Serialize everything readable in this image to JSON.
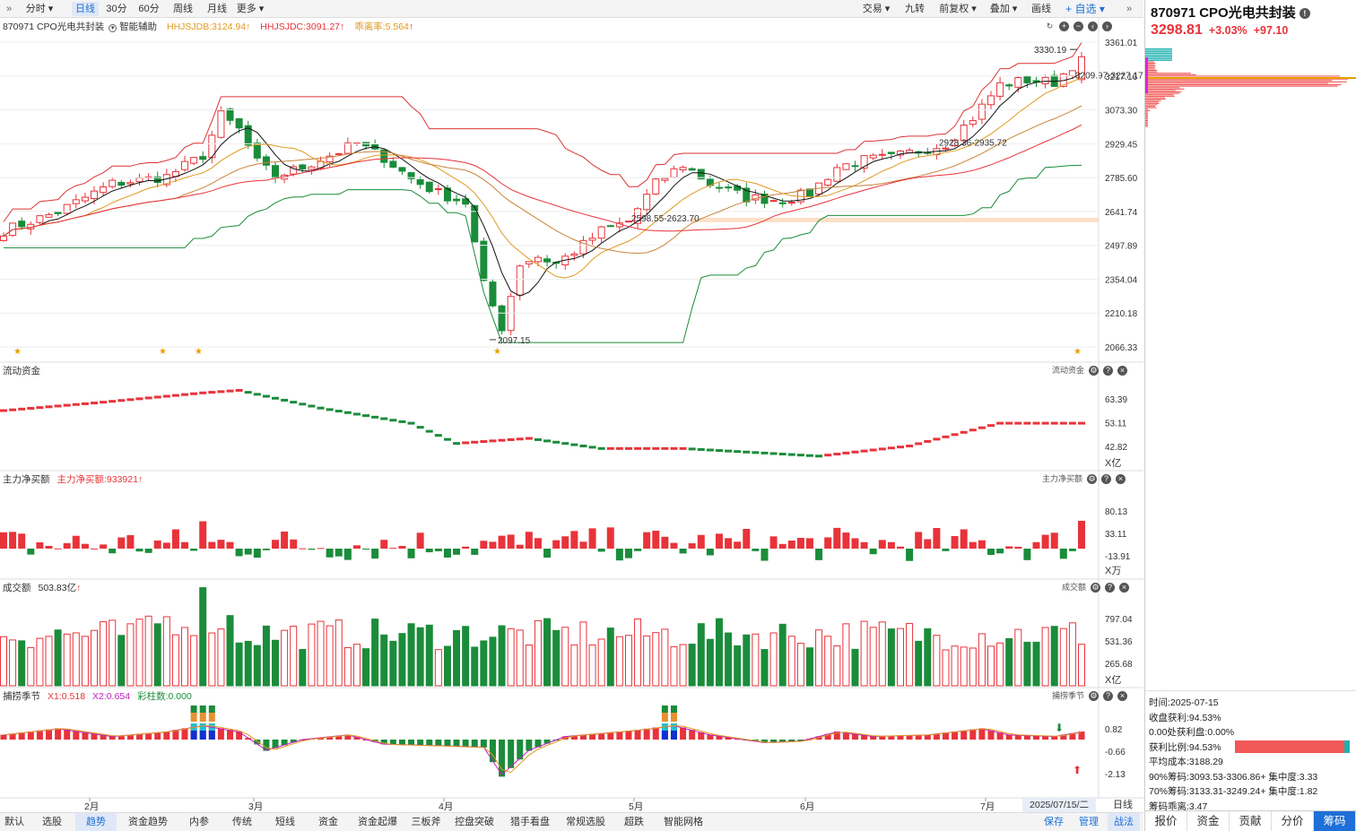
{
  "toolbar": {
    "tabs": [
      "分时",
      "日线",
      "30分",
      "60分",
      "周线",
      "月线",
      "更多"
    ],
    "active": "日线",
    "right": [
      "交易",
      "九转",
      "前复权",
      "叠加",
      "画线",
      "自选"
    ]
  },
  "chart_title": {
    "code_name": "870971 CPO光电共封装",
    "assist": "智能辅助",
    "ind1": "HHJSJDB:3124.94",
    "ind2": "HHJSJDC:3091.27",
    "ind3": "乖离率:5.564"
  },
  "price_axis": [
    "3361.01",
    "3217.16",
    "3073.30",
    "2929.45",
    "2785.60",
    "2641.74",
    "2497.89",
    "2354.04",
    "2210.18",
    "2066.33"
  ],
  "price_annotations": {
    "high": "3330.19",
    "low": "2097.15",
    "range1": "3209.97-3227.17",
    "range2": "2928.36-2935.72",
    "range3": "2598.55-2623.70"
  },
  "panel_flow": {
    "title": "流动资金",
    "right_title": "流动资金",
    "axis": [
      "63.39",
      "53.11",
      "42.82"
    ],
    "unit": "X亿"
  },
  "panel_net": {
    "title": "主力净买额",
    "label": "主力净买额:933921",
    "right_title": "主力净买额",
    "axis": [
      "80.13",
      "33.11",
      "-13.91"
    ],
    "unit": "X万"
  },
  "panel_vol": {
    "title": "成交额",
    "label": "503.83亿",
    "right_title": "成交额",
    "axis": [
      "797.04",
      "531.36",
      "265.68"
    ],
    "unit": "X亿"
  },
  "panel_season": {
    "title": "捕捞季节",
    "x1": "X1:0.518",
    "x2": "X2:0.654",
    "bar": "彩柱数:0.000",
    "right_title": "捕捞季节",
    "axis": [
      "0.82",
      "-0.66",
      "-2.13"
    ]
  },
  "months": [
    "2月",
    "3月",
    "4月",
    "5月",
    "6月",
    "7月"
  ],
  "date_box": "2025/07/15/二",
  "period_box": "日线",
  "bottom_tabs": [
    "默认",
    "选股",
    "趋势",
    "资金趋势",
    "内参",
    "传统",
    "短线",
    "资金",
    "资金起爆",
    "三板斧",
    "控盘突破",
    "猎手看盘",
    "常规选股",
    "超跌",
    "智能网格"
  ],
  "bottom_active": "趋势",
  "bottom_right": [
    "保存",
    "管理",
    "战法"
  ],
  "quote": {
    "name": "870971 CPO光电共封装",
    "price": "3298.81",
    "pct": "+3.03%",
    "chg": "+97.10"
  },
  "chip_info": [
    {
      "label": "时",
      "value": "间:2025-07-15"
    },
    {
      "label": "收盘获利:",
      "value": "94.53%"
    },
    {
      "label": "0.00处获利盘:",
      "value": "0.00%"
    },
    {
      "label": "获利比例:",
      "value": "94.53%"
    },
    {
      "label": "平均成本:",
      "value": "3188.29"
    },
    {
      "label": "90%筹码:",
      "value": "3093.53-3306.86+ 集中度:3.33"
    },
    {
      "label": "70%筹码:",
      "value": "3133.31-3249.24+ 集中度:1.82"
    },
    {
      "label": "筹码乖离:",
      "value": "3.47"
    }
  ],
  "right_tabs": [
    "报价",
    "资金",
    "贡献",
    "分价",
    "筹码"
  ],
  "right_active": "筹码",
  "colors": {
    "up": "#e8333a",
    "down": "#1a8c3a",
    "accent": "#1e6fd8"
  }
}
